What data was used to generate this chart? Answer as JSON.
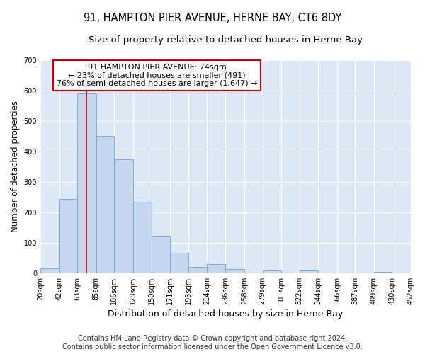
{
  "title": "91, HAMPTON PIER AVENUE, HERNE BAY, CT6 8DY",
  "subtitle": "Size of property relative to detached houses in Herne Bay",
  "xlabel": "Distribution of detached houses by size in Herne Bay",
  "ylabel": "Number of detached properties",
  "footer_line1": "Contains HM Land Registry data © Crown copyright and database right 2024.",
  "footer_line2": "Contains public sector information licensed under the Open Government Licence v3.0.",
  "bin_edges": [
    20,
    42,
    63,
    85,
    106,
    128,
    150,
    171,
    193,
    214,
    236,
    258,
    279,
    301,
    322,
    344,
    366,
    387,
    409,
    430,
    452
  ],
  "bar_heights": [
    15,
    245,
    590,
    450,
    375,
    235,
    120,
    68,
    20,
    30,
    13,
    0,
    10,
    0,
    8,
    0,
    0,
    0,
    5,
    0
  ],
  "bar_color": "#c5d8ef",
  "bar_edgecolor": "#7aadd4",
  "property_size": 74,
  "red_line_color": "#cc0000",
  "annotation_line1": "91 HAMPTON PIER AVENUE: 74sqm",
  "annotation_line2": "← 23% of detached houses are smaller (491)",
  "annotation_line3": "76% of semi-detached houses are larger (1,647) →",
  "annotation_box_color": "#ffffff",
  "annotation_box_edgecolor": "#cc0000",
  "ylim": [
    0,
    700
  ],
  "xlim": [
    20,
    452
  ],
  "background_color": "#dce8f5",
  "fig_background": "#ffffff",
  "grid_color": "#ffffff",
  "title_fontsize": 10.5,
  "subtitle_fontsize": 9.5,
  "ylabel_fontsize": 8.5,
  "xlabel_fontsize": 9,
  "tick_fontsize": 7,
  "annotation_fontsize": 8,
  "footer_fontsize": 7
}
